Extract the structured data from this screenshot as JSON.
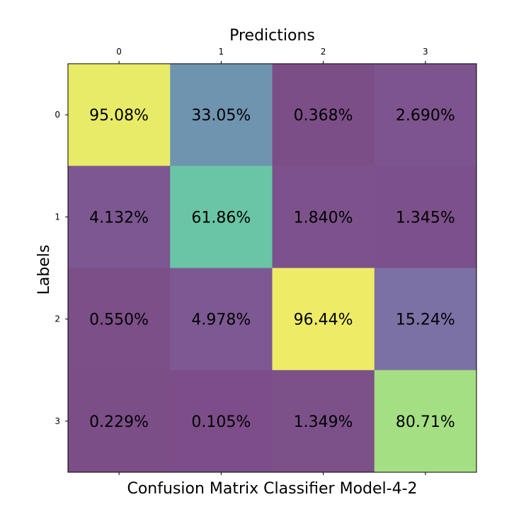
{
  "chart_data": {
    "type": "heatmap",
    "title": "Confusion Matrix Classifier Model-4-2",
    "xlabel": "Predictions",
    "ylabel": "Labels",
    "x_categories": [
      "0",
      "1",
      "2",
      "3"
    ],
    "y_categories": [
      "0",
      "1",
      "2",
      "3"
    ],
    "values": [
      [
        95.08,
        33.05,
        0.368,
        2.69
      ],
      [
        4.132,
        61.86,
        1.84,
        1.345
      ],
      [
        0.55,
        4.978,
        96.44,
        15.24
      ],
      [
        0.229,
        0.105,
        1.349,
        80.71
      ]
    ],
    "cell_labels": [
      [
        "95.08%",
        "33.05%",
        "0.368%",
        "2.690%"
      ],
      [
        "4.132%",
        "61.86%",
        "1.840%",
        "1.345%"
      ],
      [
        "0.550%",
        "4.978%",
        "96.44%",
        "15.24%"
      ],
      [
        "0.229%",
        "0.105%",
        "1.349%",
        "80.71%"
      ]
    ],
    "colormap": "viridis",
    "alpha": 0.7,
    "value_range": [
      0,
      100
    ],
    "x_axis_position": "top",
    "grid": false,
    "legend": "none"
  }
}
